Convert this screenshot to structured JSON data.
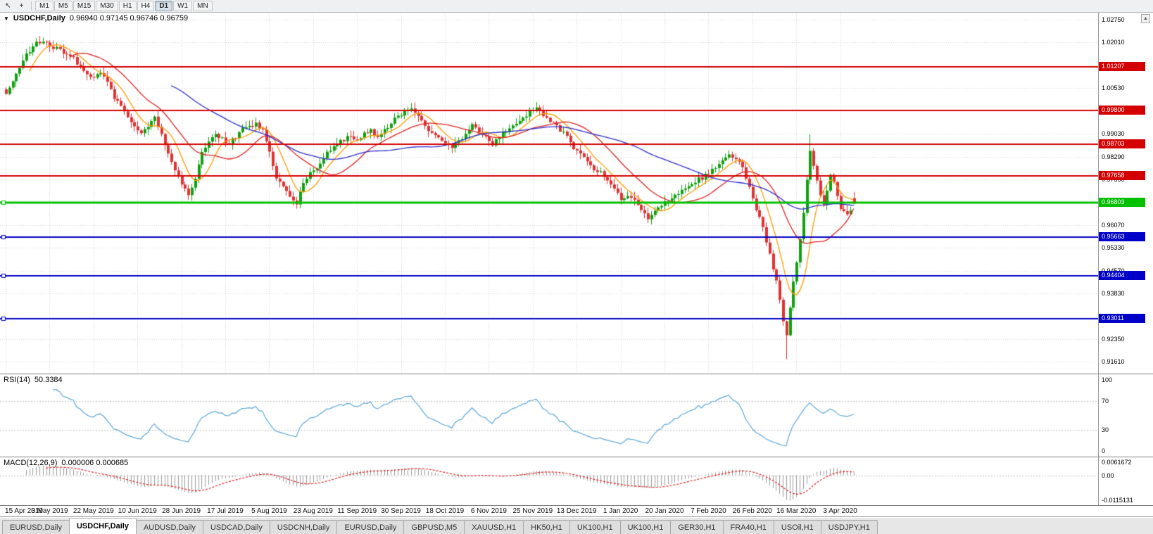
{
  "colors": {
    "up": "#10a010",
    "down": "#e03232",
    "grid": "#d6d6d6",
    "rsi_line": "#5ba7d9",
    "macd_hist": "#9a9a9a",
    "macd_signal": "#e02020",
    "level_red": "#d40000",
    "level_green": "#00c000",
    "level_blue": "#0000c8"
  },
  "toolbar": {
    "pointer_icon": "↖",
    "crosshair_icon": "+",
    "timeframes": [
      "M1",
      "M5",
      "M15",
      "M30",
      "H1",
      "H4",
      "D1",
      "W1",
      "MN"
    ],
    "active_timeframe": "D1"
  },
  "price_panel": {
    "collapse_icon": "▼",
    "symbol": "USDCHF,Daily",
    "ohlc": "0.96940 0.97145 0.96746 0.96759",
    "scroll_up_icon": "▲"
  },
  "price_axis": {
    "ticks": [
      {
        "label": "1.02750",
        "value": 1.0275
      },
      {
        "label": "1.02010",
        "value": 1.0201
      },
      {
        "label": "1.00530",
        "value": 1.0053
      },
      {
        "label": "0.99030",
        "value": 0.9903
      },
      {
        "label": "0.98290",
        "value": 0.9829
      },
      {
        "label": "0.97550",
        "value": 0.9755
      },
      {
        "label": "0.96070",
        "value": 0.9607
      },
      {
        "label": "0.95330",
        "value": 0.9533
      },
      {
        "label": "0.94570",
        "value": 0.9457
      },
      {
        "label": "0.93830",
        "value": 0.9383
      },
      {
        "label": "0.92350",
        "value": 0.9235
      },
      {
        "label": "0.91610",
        "value": 0.9161
      }
    ]
  },
  "rsi_panel": {
    "title": "RSI(14)",
    "value": "50.3384",
    "ticks": [
      {
        "label": "100",
        "value": 100
      },
      {
        "label": "70",
        "value": 70
      },
      {
        "label": "30",
        "value": 30
      },
      {
        "label": "0",
        "value": 0
      }
    ],
    "level_lines": [
      70,
      30
    ]
  },
  "macd_panel": {
    "title": "MACD(12,26,9)",
    "values": "0.000006 0.000685",
    "range": [
      -0.0125,
      0.007
    ],
    "ticks": [
      {
        "label": "0.0061672",
        "value": 0.0061672
      },
      {
        "label": "0.00",
        "value": 0
      },
      {
        "label": "-0.0115131",
        "value": -0.0115131
      }
    ]
  },
  "x_axis": {
    "bars_per_label": 13,
    "dates": [
      "15 Apr 2019",
      "3 May 2019",
      "22 May 2019",
      "10 Jun 2019",
      "28 Jun 2019",
      "17 Jul 2019",
      "5 Aug 2019",
      "23 Aug 2019",
      "11 Sep 2019",
      "30 Sep 2019",
      "18 Oct 2019",
      "6 Nov 2019",
      "25 Nov 2019",
      "13 Dec 2019",
      "1 Jan 2020",
      "20 Jan 2020",
      "7 Feb 2020",
      "26 Feb 2020",
      "16 Mar 2020",
      "3 Apr 2020"
    ]
  },
  "tabs": {
    "items": [
      {
        "label": "EURUSD,Daily",
        "active": false
      },
      {
        "label": "USDCHF,Daily",
        "active": true
      },
      {
        "label": "AUDUSD,Daily",
        "active": false
      },
      {
        "label": "USDCAD,Daily",
        "active": false
      },
      {
        "label": "USDCNH,Daily",
        "active": false
      },
      {
        "label": "EURUSD,Daily",
        "active": false
      },
      {
        "label": "GBPUSD,M5",
        "active": false
      },
      {
        "label": "XAUUSD,H1",
        "active": false
      },
      {
        "label": "HK50,H1",
        "active": false
      },
      {
        "label": "UK100,H1",
        "active": false
      },
      {
        "label": "UK100,H1",
        "active": false
      },
      {
        "label": "GER30,H1",
        "active": false
      },
      {
        "label": "FRA40,H1",
        "active": false
      },
      {
        "label": "USOil,H1",
        "active": false
      },
      {
        "label": "USDJPY,H1",
        "active": false
      }
    ]
  },
  "chart_data": {
    "type": "candlestick",
    "symbol": "USDCHF",
    "timeframe": "Daily",
    "current_bar": {
      "open": 0.9694,
      "high": 0.97145,
      "low": 0.96746,
      "close": 0.96759
    },
    "indicators": [
      {
        "name": "RSI",
        "period": 14,
        "value": 50.3384
      },
      {
        "name": "MACD",
        "params": [
          12,
          26,
          9
        ],
        "values": [
          6e-06,
          0.000685
        ]
      }
    ],
    "moving_averages": [
      {
        "period": 8,
        "color": "#ff9a00"
      },
      {
        "period": 20,
        "color": "#e02020"
      },
      {
        "period": 50,
        "color": "#2b2bd0"
      }
    ],
    "levels": [
      {
        "label": "1.01207",
        "value": 1.01207,
        "color": "red",
        "width": 2
      },
      {
        "label": "0.99800",
        "value": 0.998,
        "color": "red",
        "width": 2
      },
      {
        "label": "0.98703",
        "value": 0.98703,
        "color": "red",
        "width": 2
      },
      {
        "label": "0.97658",
        "value": 0.97658,
        "color": "red",
        "width": 2
      },
      {
        "label": "0.96803",
        "value": 0.96803,
        "color": "green",
        "width": 3
      },
      {
        "label": "0.95663",
        "value": 0.95663,
        "color": "blue",
        "width": 2
      },
      {
        "label": "0.94404",
        "value": 0.94404,
        "color": "blue",
        "width": 2
      },
      {
        "label": "0.93011",
        "value": 0.93011,
        "color": "blue",
        "width": 2
      }
    ],
    "y_range": [
      0.9123,
      1.0298
    ],
    "total_bars": 252,
    "extreme_wicks": [
      [
        10,
        "high",
        1.0222
      ],
      [
        54,
        "low",
        0.9692
      ],
      [
        86,
        "low",
        0.966
      ],
      [
        190,
        "low",
        0.9613
      ],
      [
        231,
        "low",
        0.917
      ],
      [
        238,
        "high",
        0.9902
      ]
    ],
    "price_anchors": [
      [
        0,
        1.003
      ],
      [
        2,
        1.0075
      ],
      [
        4,
        1.012
      ],
      [
        6,
        1.016
      ],
      [
        8,
        1.019
      ],
      [
        10,
        1.0205
      ],
      [
        12,
        1.02
      ],
      [
        14,
        1.0185
      ],
      [
        16,
        1.0175
      ],
      [
        18,
        1.016
      ],
      [
        20,
        1.015
      ],
      [
        22,
        1.012
      ],
      [
        24,
        1.0095
      ],
      [
        26,
        1.008
      ],
      [
        28,
        1.0105
      ],
      [
        30,
        1.007
      ],
      [
        32,
        1.002
      ],
      [
        34,
        0.999
      ],
      [
        36,
        0.996
      ],
      [
        38,
        0.9925
      ],
      [
        40,
        0.99
      ],
      [
        42,
        0.993
      ],
      [
        44,
        0.9955
      ],
      [
        46,
        0.99
      ],
      [
        48,
        0.984
      ],
      [
        50,
        0.979
      ],
      [
        52,
        0.9745
      ],
      [
        54,
        0.97
      ],
      [
        56,
        0.976
      ],
      [
        58,
        0.984
      ],
      [
        60,
        0.9875
      ],
      [
        62,
        0.99
      ],
      [
        64,
        0.9885
      ],
      [
        66,
        0.987
      ],
      [
        68,
        0.9895
      ],
      [
        70,
        0.992
      ],
      [
        72,
        0.993
      ],
      [
        74,
        0.9935
      ],
      [
        76,
        0.9915
      ],
      [
        78,
        0.985
      ],
      [
        80,
        0.976
      ],
      [
        82,
        0.973
      ],
      [
        84,
        0.97
      ],
      [
        86,
        0.968
      ],
      [
        88,
        0.974
      ],
      [
        90,
        0.9775
      ],
      [
        92,
        0.979
      ],
      [
        94,
        0.9825
      ],
      [
        96,
        0.9855
      ],
      [
        98,
        0.987
      ],
      [
        100,
        0.9885
      ],
      [
        102,
        0.99
      ],
      [
        104,
        0.988
      ],
      [
        106,
        0.991
      ],
      [
        108,
        0.9915
      ],
      [
        110,
        0.9895
      ],
      [
        112,
        0.9915
      ],
      [
        114,
        0.994
      ],
      [
        116,
        0.996
      ],
      [
        118,
        0.998
      ],
      [
        120,
        0.9985
      ],
      [
        122,
        0.996
      ],
      [
        124,
        0.9925
      ],
      [
        126,
        0.9905
      ],
      [
        128,
        0.9885
      ],
      [
        130,
        0.987
      ],
      [
        132,
        0.9855
      ],
      [
        134,
        0.988
      ],
      [
        136,
        0.9905
      ],
      [
        138,
        0.993
      ],
      [
        140,
        0.9915
      ],
      [
        142,
        0.989
      ],
      [
        144,
        0.987
      ],
      [
        146,
        0.989
      ],
      [
        148,
        0.9915
      ],
      [
        150,
        0.9935
      ],
      [
        152,
        0.9945
      ],
      [
        154,
        0.9965
      ],
      [
        156,
        0.9985
      ],
      [
        158,
        0.998
      ],
      [
        160,
        0.9955
      ],
      [
        162,
        0.9935
      ],
      [
        164,
        0.9915
      ],
      [
        166,
        0.9895
      ],
      [
        168,
        0.9855
      ],
      [
        170,
        0.9835
      ],
      [
        172,
        0.981
      ],
      [
        174,
        0.979
      ],
      [
        176,
        0.9775
      ],
      [
        178,
        0.975
      ],
      [
        180,
        0.972
      ],
      [
        182,
        0.969
      ],
      [
        184,
        0.9705
      ],
      [
        186,
        0.969
      ],
      [
        188,
        0.966
      ],
      [
        190,
        0.9628
      ],
      [
        192,
        0.965
      ],
      [
        194,
        0.967
      ],
      [
        196,
        0.969
      ],
      [
        198,
        0.9705
      ],
      [
        200,
        0.972
      ],
      [
        202,
        0.9735
      ],
      [
        204,
        0.975
      ],
      [
        206,
        0.976
      ],
      [
        208,
        0.9775
      ],
      [
        210,
        0.9795
      ],
      [
        212,
        0.982
      ],
      [
        214,
        0.9835
      ],
      [
        216,
        0.9825
      ],
      [
        218,
        0.979
      ],
      [
        220,
        0.973
      ],
      [
        222,
        0.966
      ],
      [
        224,
        0.96
      ],
      [
        226,
        0.951
      ],
      [
        228,
        0.942
      ],
      [
        230,
        0.93
      ],
      [
        231,
        0.925
      ],
      [
        232,
        0.934
      ],
      [
        233,
        0.942
      ],
      [
        234,
        0.948
      ],
      [
        235,
        0.956
      ],
      [
        236,
        0.965
      ],
      [
        237,
        0.975
      ],
      [
        238,
        0.985
      ],
      [
        239,
        0.98
      ],
      [
        240,
        0.975
      ],
      [
        241,
        0.971
      ],
      [
        242,
        0.968
      ],
      [
        243,
        0.972
      ],
      [
        244,
        0.977
      ],
      [
        245,
        0.974
      ],
      [
        246,
        0.97
      ],
      [
        247,
        0.966
      ],
      [
        248,
        0.9645
      ],
      [
        249,
        0.964
      ],
      [
        250,
        0.9655
      ],
      [
        251,
        0.9676
      ]
    ]
  }
}
